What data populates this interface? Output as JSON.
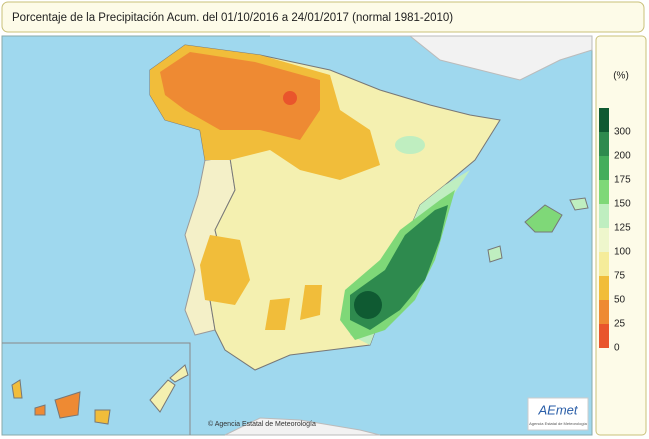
{
  "header": {
    "title": "Porcentaje de la Precipitación Acum. del 01/10/2016 a  24/01/2017  (normal 1981-2010)"
  },
  "legend": {
    "unit": "(%)",
    "ticks": [
      300,
      200,
      175,
      150,
      125,
      100,
      75,
      50,
      25,
      0
    ],
    "colors": [
      "#0f5a32",
      "#2e8a4e",
      "#44ad5c",
      "#7fd878",
      "#bfeec0",
      "#eef6cc",
      "#f5ec9a",
      "#f1bd3a",
      "#ee8a33",
      "#e9552c"
    ]
  },
  "footer": {
    "credit": "© Agencia Estatal de Meteorología",
    "logo": "AEmet",
    "logo_subtitle": "Agencia Estatal de Meteorología"
  }
}
